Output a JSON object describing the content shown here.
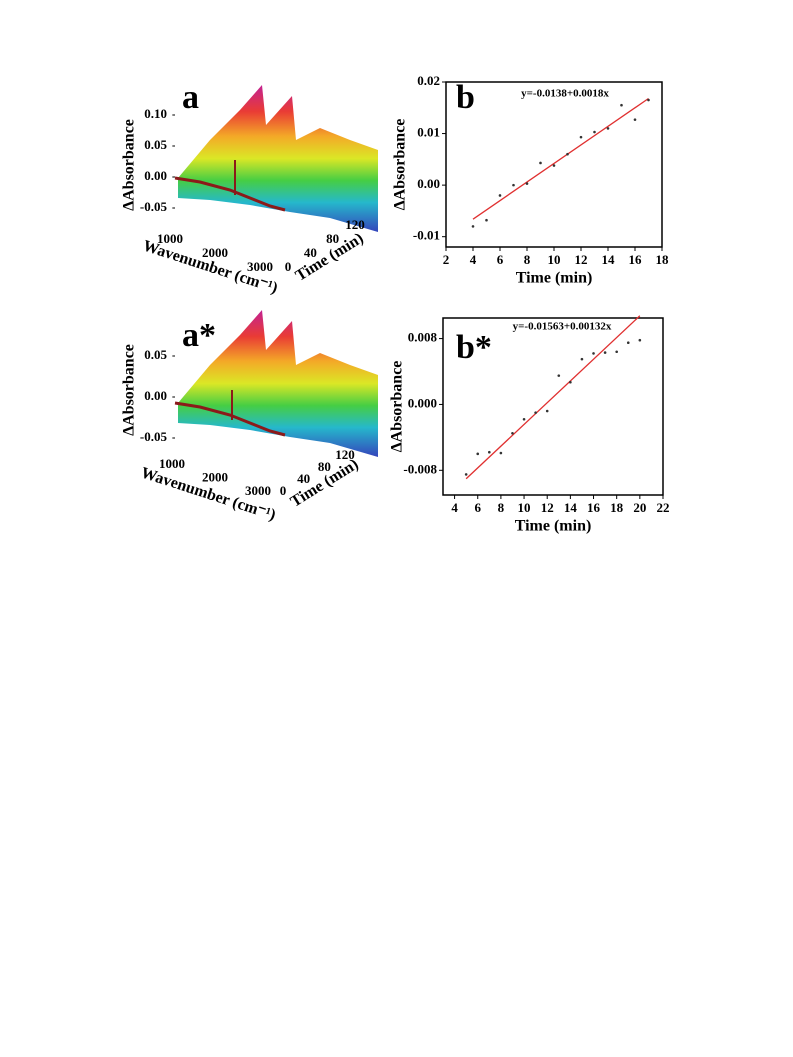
{
  "chart_data": [
    {
      "type": "surface3d",
      "panel_label": "a",
      "zlabel": "ΔAbsorbance",
      "xlabel": "Wavenumber (cm⁻¹)",
      "ylabel": "Time (min)",
      "zlim": [
        -0.05,
        0.1
      ],
      "zticks": [
        -0.05,
        {
          "value": 0,
          "label": "0.00"
        },
        0.05,
        {
          "value": 0.1,
          "label": "0.10"
        }
      ],
      "xlim": [
        1000,
        3000
      ],
      "xticks": [
        1000,
        2000,
        3000
      ],
      "ylim": [
        0,
        120
      ],
      "yticks": [
        0,
        40,
        80,
        120
      ]
    },
    {
      "type": "scatter",
      "panel_label": "b",
      "annotation": "y=-0.0138+0.0018x",
      "xlabel": "Time (min)",
      "ylabel": "ΔAbsorbance",
      "x": [
        4,
        5,
        6,
        7,
        8,
        9,
        10,
        11,
        12,
        13,
        14,
        15,
        16,
        17
      ],
      "values": [
        -0.008,
        -0.0068,
        -0.002,
        0.0,
        0.0003,
        0.0043,
        0.0038,
        0.006,
        0.0093,
        0.0103,
        0.011,
        0.0155,
        0.0127,
        0.0165
      ],
      "color": "#333333",
      "fit": {
        "x": [
          4,
          17
        ],
        "values": [
          -0.0066,
          0.0168
        ],
        "color": "#e03030"
      },
      "xlim": [
        2,
        18
      ],
      "xticks": [
        2,
        4,
        6,
        8,
        10,
        12,
        14,
        16,
        18
      ],
      "ylim": [
        -0.012,
        0.02
      ],
      "yticks": [
        -0.01,
        {
          "value": 0,
          "label": "0.00"
        },
        0.01,
        0.02
      ]
    },
    {
      "type": "surface3d",
      "panel_label": "a*",
      "zlabel": "ΔAbsorbance",
      "xlabel": "Wavenumber (cm⁻¹)",
      "ylabel": "Time (min)",
      "zlim": [
        -0.05,
        0.05
      ],
      "zticks": [
        -0.05,
        {
          "value": 0,
          "label": "0.00"
        },
        0.05
      ],
      "xlim": [
        1000,
        3000
      ],
      "xticks": [
        1000,
        2000,
        3000
      ],
      "ylim": [
        0,
        120
      ],
      "yticks": [
        0,
        40,
        80,
        120
      ]
    },
    {
      "type": "scatter",
      "panel_label": "b*",
      "annotation": "y=-0.01563+0.00132x",
      "xlabel": "Time (min)",
      "ylabel": "ΔAbsorbance",
      "x": [
        5,
        6,
        7,
        8,
        9,
        10,
        11,
        12,
        13,
        14,
        15,
        16,
        17,
        18,
        19,
        20
      ],
      "values": [
        -0.0085,
        -0.006,
        -0.0058,
        -0.0059,
        -0.0035,
        -0.0018,
        -0.001,
        -0.0008,
        0.0035,
        0.0027,
        0.0055,
        0.0062,
        0.0063,
        0.0064,
        0.0075,
        0.0078
      ],
      "color": "#333333",
      "fit": {
        "x": [
          5,
          20
        ],
        "values": [
          -0.00903,
          0.01077
        ],
        "color": "#e03030"
      },
      "xlim": [
        3,
        22
      ],
      "xticks": [
        4,
        6,
        8,
        10,
        12,
        14,
        16,
        18,
        20,
        22
      ],
      "ylim": [
        -0.011,
        0.0105
      ],
      "yticks": [
        -0.008,
        {
          "value": 0,
          "label": "0.000"
        },
        0.008
      ]
    }
  ]
}
